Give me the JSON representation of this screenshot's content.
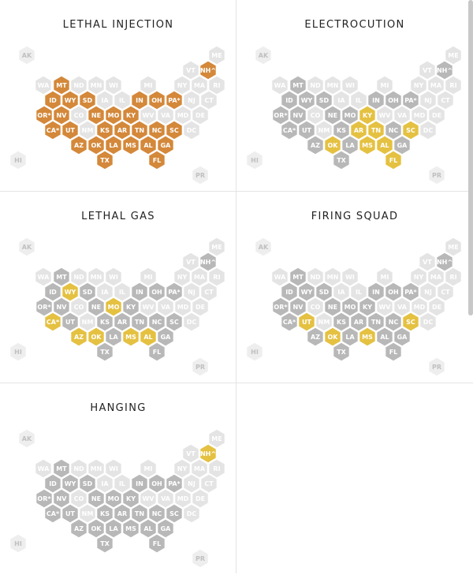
{
  "colors": {
    "primary": "#d4883a",
    "secondary": "#e5c142",
    "not_used": "#e4e4e4",
    "ineligible": "#b8b8b8",
    "territory": "#eeeeee",
    "label_light": "#ffffff",
    "label_dark": "#c0c0c0"
  },
  "panels": [
    {
      "title": "LETHAL INJECTION",
      "primary": [
        "MT",
        "ID",
        "WY",
        "SD",
        "IN",
        "OH",
        "PA*",
        "OR*",
        "NV",
        "NE",
        "MO",
        "KY",
        "CA*",
        "UT",
        "KS",
        "AR",
        "TN",
        "NC",
        "SC",
        "AZ",
        "OK",
        "LA",
        "MS",
        "AL",
        "GA",
        "TX",
        "FL",
        "NH^"
      ],
      "secondary": []
    },
    {
      "title": "ELECTROCUTION",
      "primary": [],
      "secondary": [
        "KY",
        "AR",
        "TN",
        "SC",
        "OK",
        "MS",
        "AL",
        "FL"
      ]
    },
    {
      "title": "LETHAL GAS",
      "primary": [],
      "secondary": [
        "WY",
        "MO",
        "CA*",
        "AZ",
        "OK",
        "MS",
        "AL"
      ]
    },
    {
      "title": "FIRING SQUAD",
      "primary": [],
      "secondary": [
        "UT",
        "OK",
        "MS",
        "SC"
      ]
    },
    {
      "title": "HANGING",
      "primary": [],
      "secondary": [
        "NH^"
      ]
    }
  ],
  "death_penalty_states": [
    "MT",
    "ID",
    "WY",
    "SD",
    "IN",
    "OH",
    "PA*",
    "OR*",
    "NV",
    "NE",
    "MO",
    "KY",
    "CA*",
    "UT",
    "KS",
    "AR",
    "TN",
    "NC",
    "SC",
    "AZ",
    "OK",
    "LA",
    "MS",
    "AL",
    "GA",
    "TX",
    "FL",
    "NH^"
  ],
  "territories": [
    "AK",
    "HI",
    "PR"
  ],
  "rows": [
    [
      "AK"
    ],
    [
      "VT",
      "NH^",
      "ME"
    ],
    [
      "WA",
      "MT",
      "ND",
      "MN",
      "WI",
      "MI",
      "NY",
      "MA",
      "RI"
    ],
    [
      "ID",
      "WY",
      "SD",
      "IA",
      "IL",
      "IN",
      "OH",
      "PA*",
      "NJ",
      "CT"
    ],
    [
      "OR*",
      "NV",
      "CO",
      "NE",
      "MO",
      "KY",
      "WV",
      "VA",
      "MD",
      "DE"
    ],
    [
      "CA*",
      "UT",
      "NM",
      "KS",
      "AR",
      "TN",
      "NC",
      "SC",
      "DC"
    ],
    [
      "AZ",
      "OK",
      "LA",
      "MS",
      "AL",
      "GA"
    ],
    [
      "TX",
      "FL"
    ],
    [
      "HI"
    ],
    [
      "PR"
    ]
  ]
}
